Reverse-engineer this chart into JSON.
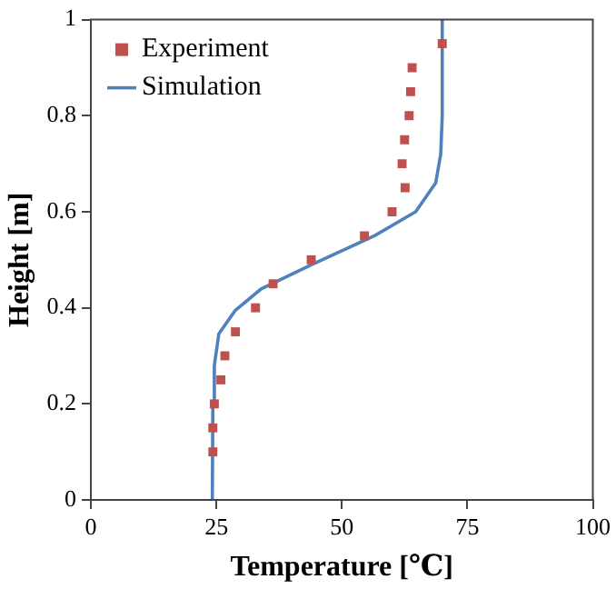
{
  "chart_data": {
    "type": "scatter",
    "xlabel": "Temperature [℃]",
    "ylabel": "Height [m]",
    "xlim": [
      0,
      100
    ],
    "xticks": [
      0,
      25,
      50,
      75,
      100
    ],
    "ylim": [
      0,
      1
    ],
    "yticks": [
      0,
      0.2,
      0.4,
      0.6,
      0.8,
      1
    ],
    "grid": false,
    "legend": "top left",
    "series": [
      {
        "name": "Experiment",
        "type": "scatter",
        "marker": "square",
        "color": "#c0504d",
        "x": [
          24.3,
          24.3,
          24.6,
          25.9,
          26.7,
          28.8,
          32.8,
          36.3,
          43.9,
          54.5,
          60,
          62.6,
          62,
          62.5,
          63.4,
          63.7,
          64,
          70
        ],
        "values": [
          0.1,
          0.15,
          0.2,
          0.25,
          0.3,
          0.35,
          0.4,
          0.45,
          0.5,
          0.55,
          0.6,
          0.65,
          0.7,
          0.75,
          0.8,
          0.85,
          0.9,
          0.95
        ]
      },
      {
        "name": "Simulation",
        "type": "line",
        "marker": "none",
        "color": "#4f81bd",
        "x": [
          24.2,
          24.3,
          24.6,
          25.5,
          28.8,
          34,
          44,
          56.5,
          64.7,
          68.7,
          69.7,
          70,
          70
        ],
        "values": [
          0,
          0.2,
          0.28,
          0.346,
          0.395,
          0.44,
          0.49,
          0.55,
          0.6,
          0.66,
          0.72,
          0.8,
          1
        ]
      }
    ]
  }
}
